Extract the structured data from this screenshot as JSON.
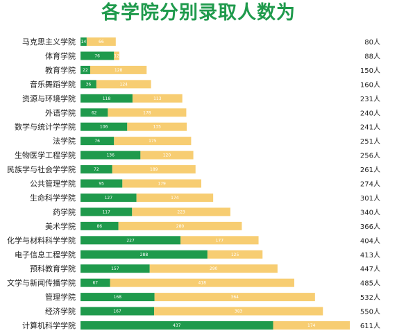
{
  "title": "各学院分别录取人数为",
  "colors": {
    "title": "#1f9a4c",
    "series_1": "#1f9a4c",
    "series_2": "#f7cd72"
  },
  "chart_data": {
    "type": "bar",
    "orientation": "horizontal",
    "stacked": true,
    "title": "各学院分别录取人数为",
    "categories": [
      "马克思主义学院",
      "体育学院",
      "教育学院",
      "音乐舞蹈学院",
      "资源与环境学院",
      "外语学院",
      "数学与统计学学院",
      "法学院",
      "生物医学工程学院",
      "民族学与社会学学院",
      "公共管理学院",
      "生命科学学院",
      "药学院",
      "美术学院",
      "化学与材料科学学院",
      "电子信息工程学院",
      "预科教育学院",
      "文学与新闻传播学院",
      "管理学院",
      "经济学院",
      "计算机科学学院"
    ],
    "series": [
      {
        "values": [
          14,
          76,
          22,
          36,
          118,
          62,
          106,
          76,
          136,
          72,
          95,
          127,
          117,
          86,
          227,
          288,
          157,
          67,
          168,
          167,
          437
        ]
      },
      {
        "values": [
          66,
          12,
          128,
          124,
          113,
          178,
          135,
          175,
          120,
          189,
          179,
          174,
          223,
          280,
          177,
          125,
          290,
          418,
          364,
          383,
          174
        ]
      }
    ],
    "totals": [
      80,
      88,
      150,
      160,
      231,
      240,
      241,
      251,
      256,
      261,
      274,
      301,
      340,
      366,
      404,
      413,
      447,
      485,
      532,
      550,
      611
    ],
    "total_labels": [
      "80人",
      "88人",
      "150人",
      "160人",
      "231人",
      "240人",
      "241人",
      "251人",
      "256人",
      "261人",
      "274人",
      "301人",
      "340人",
      "366人",
      "404人",
      "413人",
      "447人",
      "485人",
      "532人",
      "550人",
      "611人"
    ],
    "xlim": [
      0,
      611
    ],
    "grid": false,
    "legend": "none"
  }
}
